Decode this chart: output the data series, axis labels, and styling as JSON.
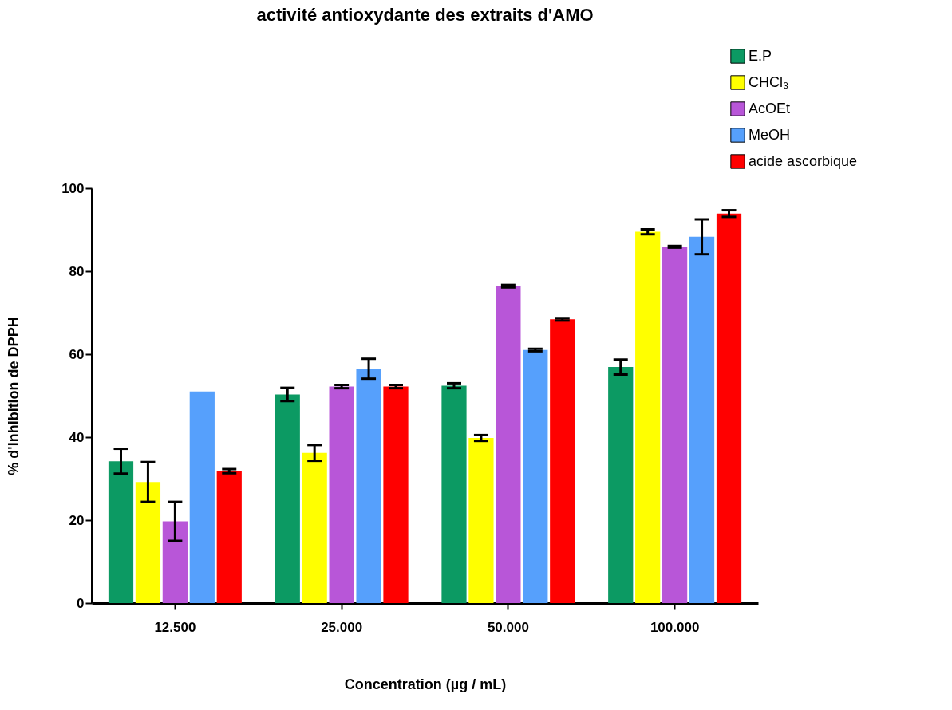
{
  "chart_data": {
    "type": "bar",
    "title": "activité antioxydante des extraits d'AMO",
    "xlabel": "Concentration (µg / mL)",
    "ylabel": "% d'Inhibition de DPPH",
    "categories": [
      "12.500",
      "25.000",
      "50.000",
      "100.000"
    ],
    "series": [
      {
        "name": "E.P",
        "color": "#0c9a63",
        "values": [
          34.2,
          50.3,
          52.4,
          56.9
        ],
        "errors": [
          3.0,
          1.6,
          0.6,
          1.8
        ]
      },
      {
        "name": "CHCl₃",
        "color": "#ffff00",
        "values": [
          29.2,
          36.2,
          39.8,
          89.5
        ],
        "errors": [
          4.8,
          1.9,
          0.7,
          0.6
        ]
      },
      {
        "name": "AcOEt",
        "color": "#b856d8",
        "values": [
          19.7,
          52.2,
          76.4,
          85.9
        ],
        "errors": [
          4.7,
          0.4,
          0.3,
          0.2
        ]
      },
      {
        "name": "MeOH",
        "color": "#56a0fc",
        "values": [
          51.0,
          56.5,
          61.0,
          88.3
        ],
        "errors": [
          null,
          2.4,
          0.3,
          4.2
        ]
      },
      {
        "name": "acide ascorbique",
        "color": "#ff0000",
        "values": [
          31.8,
          52.2,
          68.4,
          93.9
        ],
        "errors": [
          0.5,
          0.4,
          0.3,
          0.8
        ]
      }
    ],
    "ylim": [
      0,
      100
    ],
    "yticks": [
      0,
      20,
      40,
      60,
      80,
      100
    ],
    "grid": false,
    "legend": "top right"
  }
}
